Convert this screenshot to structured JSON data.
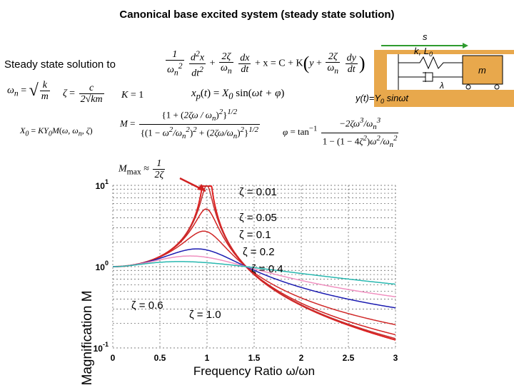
{
  "header": {
    "title": "Canonical base excited system (steady state solution)",
    "intro": "Steady state solution to"
  },
  "system_figure": {
    "s_label": "s",
    "spring_label": "k, L",
    "spring_sub": "0",
    "damper_label": "λ",
    "mass_label": "m",
    "input_label": "y(t)=Y",
    "input_sub": "0",
    "input_tail": " sinωt",
    "colors": {
      "ground": "#e8a84c",
      "mass": "#e8a84c",
      "arrow": "#2e9b2e"
    }
  },
  "equations": {
    "eom": "1/ωn² d²x/dt² + 2ζ/ωn dx/dt + x = C + K(y + 2ζ/ωn dy/dt)",
    "omega_n": "ωn = √(k/m)",
    "zeta": "ζ = c / (2√(km))",
    "gain": "K = 1",
    "xp": "xp(t) = X0 sin(ωt + φ)",
    "X0": "X0 = KY0 M(ω, ωn, ζ)",
    "M": "M = {1 + (2ζω/ωn)²}^(1/2) / {(1 − ω²/ωn²)² + (2ζω/ωn)²}^(1/2)",
    "phi": "φ = tan⁻¹[ −2ζω³/ωn³ / (1 − (1 − 4ζ²)ω²/ωn²) ]",
    "Mmax": "Mmax ≈ 1/(2ζ)"
  },
  "chart_data": {
    "type": "line",
    "xlabel": "Frequency Ratio ω/ωn",
    "ylabel": "Magnification M",
    "xlim": [
      0,
      3
    ],
    "ylim": [
      0.1,
      10
    ],
    "yscale": "log",
    "grid": true,
    "xticks": [
      "0",
      "0.5",
      "1",
      "1.5",
      "2",
      "2.5",
      "3"
    ],
    "yticks": [
      {
        "base": "10",
        "exp": "-1"
      },
      {
        "base": "10",
        "exp": "0"
      },
      {
        "base": "10",
        "exp": "1"
      }
    ],
    "series": [
      {
        "zeta": 0.01,
        "color": "#e02020",
        "width": 2
      },
      {
        "zeta": 0.05,
        "color": "#c03030",
        "width": 1.5
      },
      {
        "zeta": 0.1,
        "color": "#d32020",
        "width": 1.5
      },
      {
        "zeta": 0.2,
        "color": "#d02828",
        "width": 1.5
      },
      {
        "zeta": 0.4,
        "color": "#1a1ab0",
        "width": 1.5
      },
      {
        "zeta": 0.6,
        "color": "#f090c0",
        "width": 1.5
      },
      {
        "zeta": 1.0,
        "color": "#29b8b0",
        "width": 1.5
      }
    ],
    "annotations": [
      "ζ = 0.01",
      "ζ = 0.05",
      "ζ = 0.1",
      "ζ = 0.2",
      "ζ = 0.4",
      "ζ = 0.6",
      "ζ = 1.0"
    ]
  }
}
